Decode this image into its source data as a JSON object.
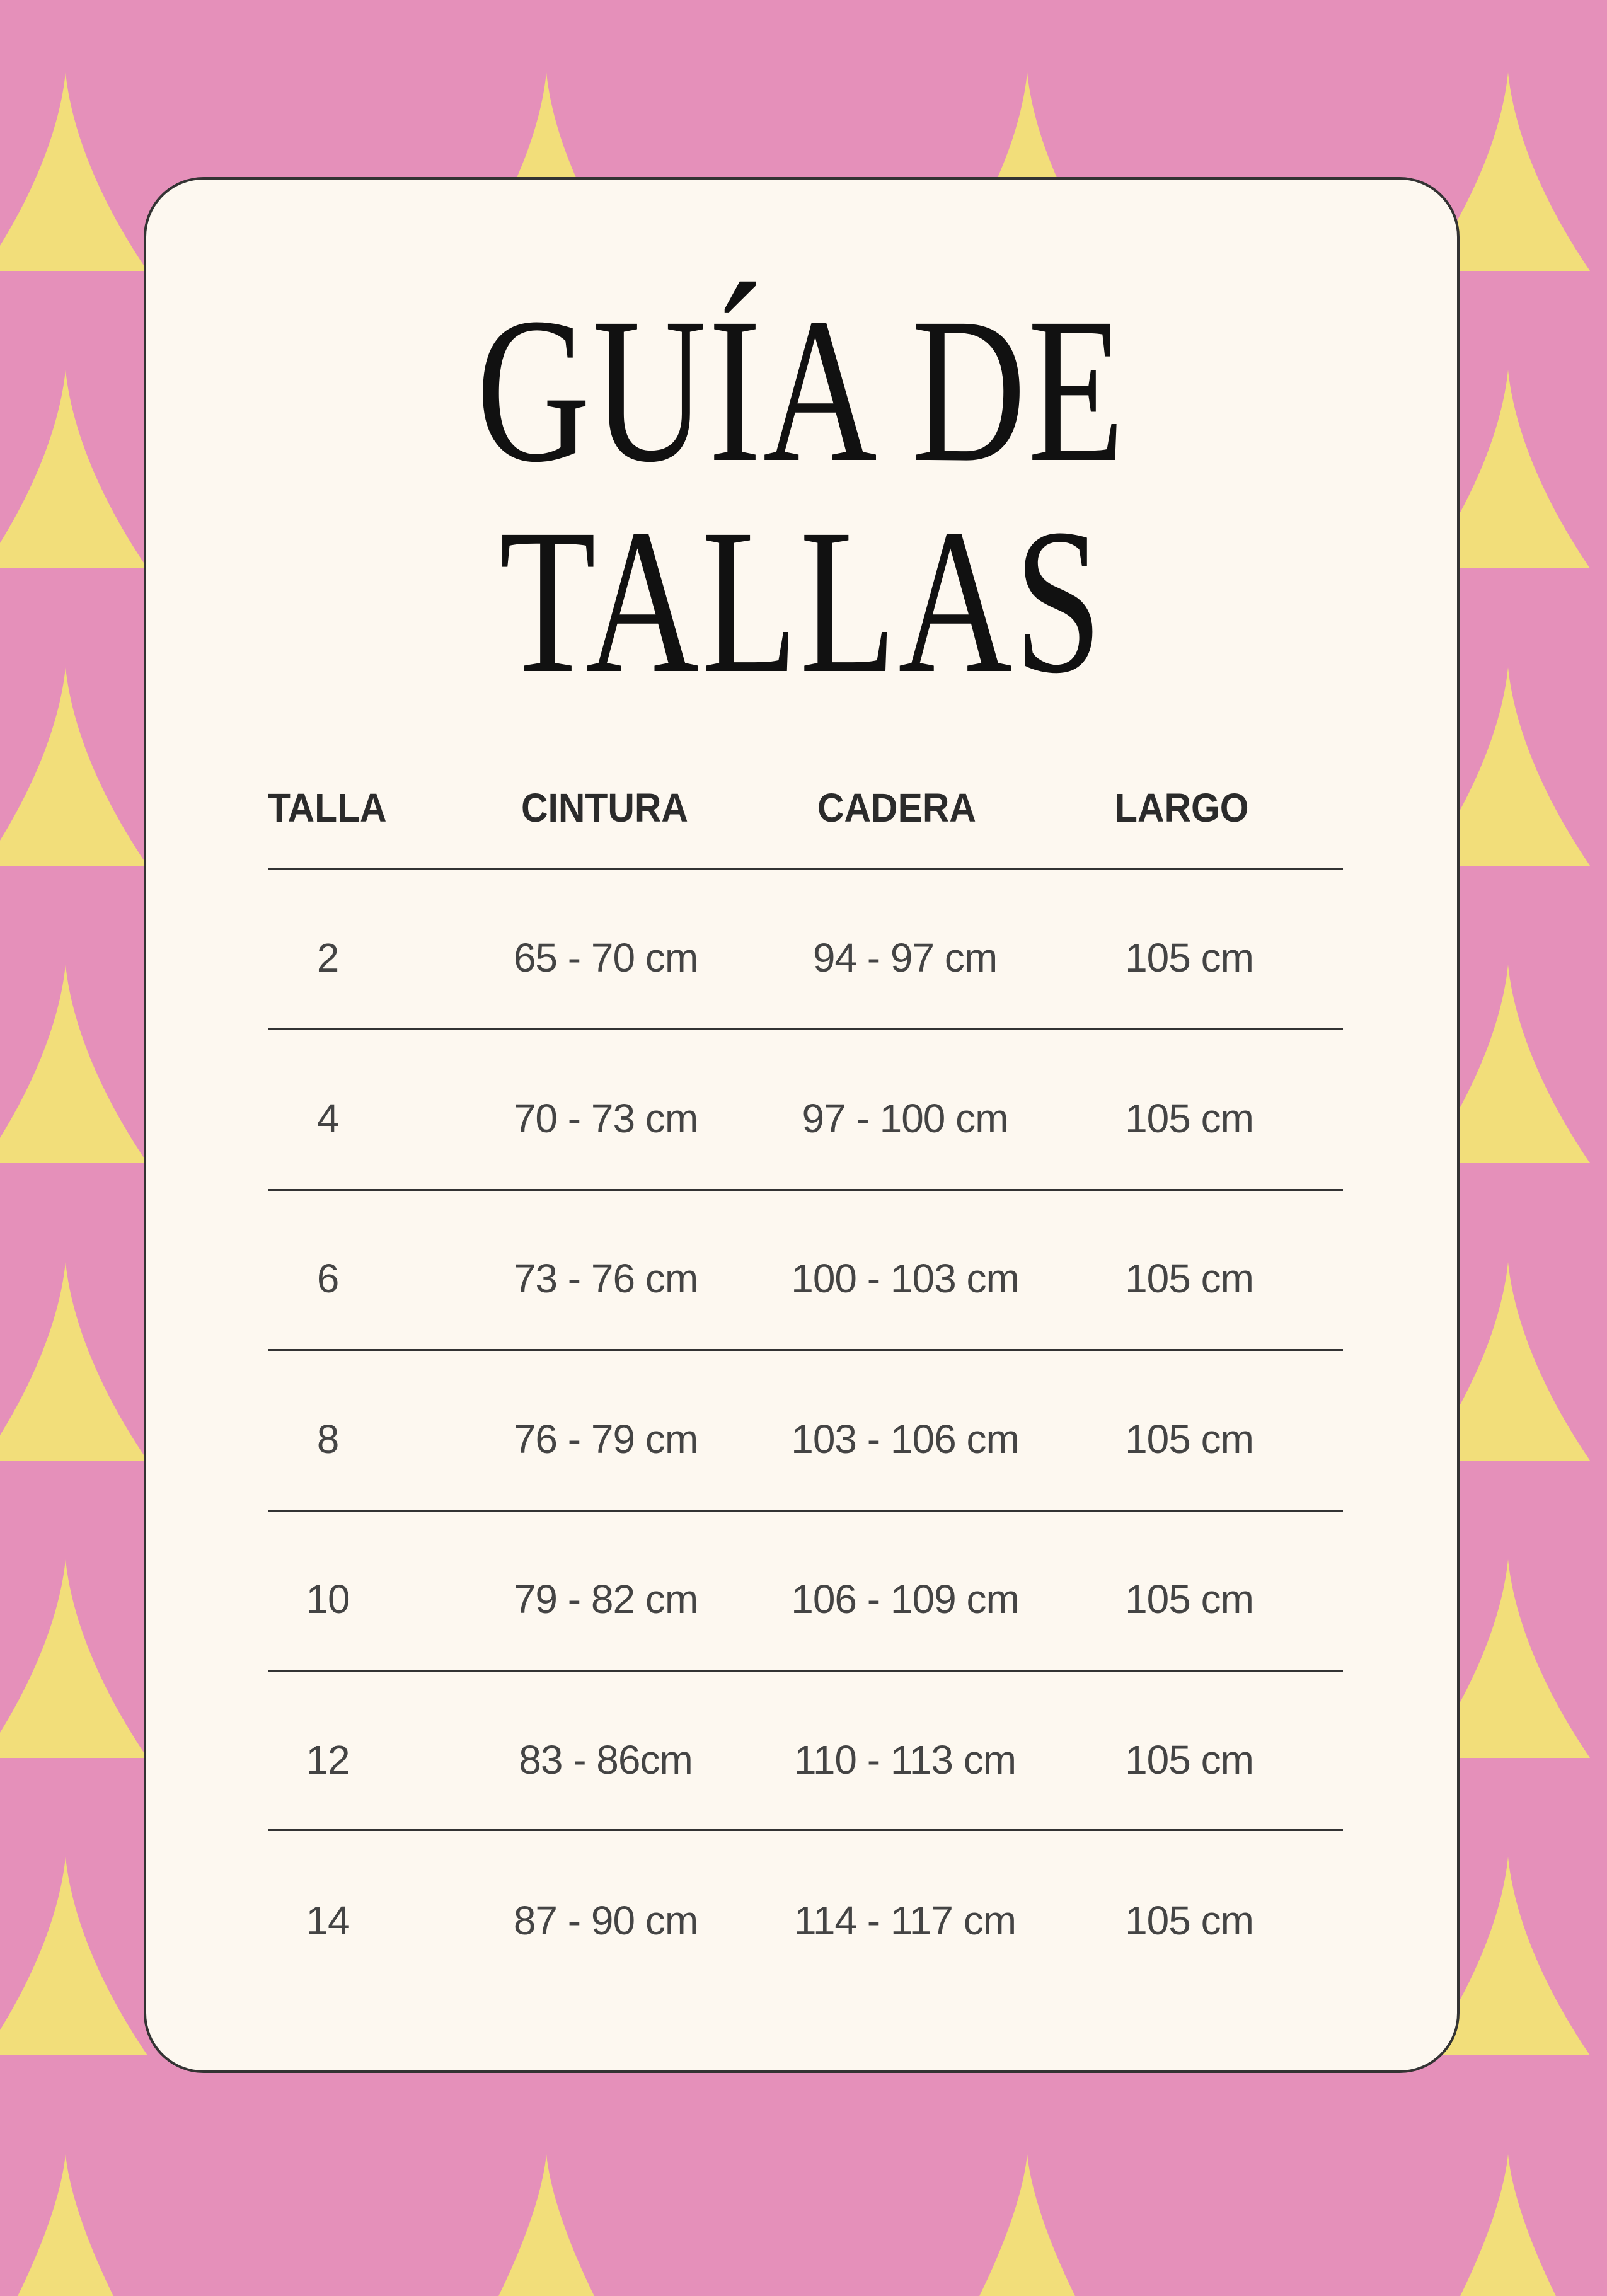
{
  "colors": {
    "pink": "#E590BA",
    "yellow": "#F2DE7A",
    "card": "#FDF8F0",
    "text": "#111111"
  },
  "background": {
    "pattern": "scallop-scales"
  },
  "title": {
    "line1": "GUÍA DE",
    "line2": "TALLAS"
  },
  "table": {
    "headers": [
      "TALLA",
      "CINTURA",
      "CADERA",
      "LARGO"
    ],
    "rows": [
      [
        "2",
        "65 - 70 cm",
        "94 - 97 cm",
        "105 cm"
      ],
      [
        "4",
        "70 - 73 cm",
        "97 - 100 cm",
        "105 cm"
      ],
      [
        "6",
        "73 - 76 cm",
        "100 - 103 cm",
        "105 cm"
      ],
      [
        "8",
        "76 - 79 cm",
        "103 - 106 cm",
        "105 cm"
      ],
      [
        "10",
        "79 - 82 cm",
        "106 - 109 cm",
        "105 cm"
      ],
      [
        "12",
        "83 - 86cm",
        "110 - 113 cm",
        "105 cm"
      ],
      [
        "14",
        "87 - 90 cm",
        "114 - 117 cm",
        "105 cm"
      ]
    ]
  }
}
